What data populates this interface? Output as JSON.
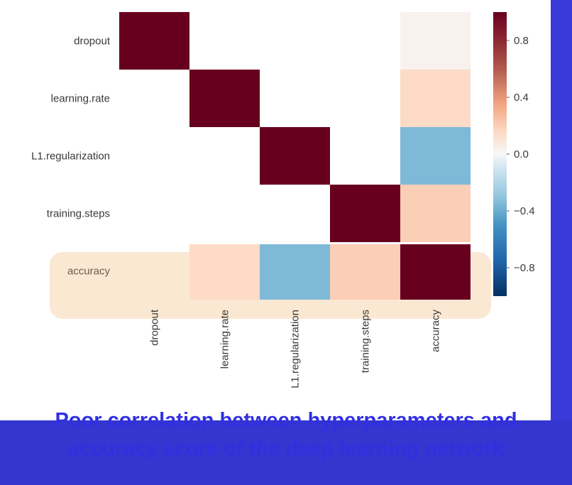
{
  "chart_data": {
    "type": "heatmap",
    "variables": [
      "dropout",
      "learning.rate",
      "L1.regularization",
      "training.steps",
      "accuracy"
    ],
    "matrix": [
      [
        1.0,
        0.0,
        0.0,
        0.0,
        0.03
      ],
      [
        0.0,
        1.0,
        0.0,
        0.0,
        0.15
      ],
      [
        0.0,
        0.0,
        1.0,
        0.0,
        -0.35
      ],
      [
        0.0,
        0.0,
        0.0,
        1.0,
        0.2
      ],
      [
        0.03,
        0.15,
        -0.35,
        0.2,
        1.0
      ]
    ],
    "colorbar": {
      "min": -1.0,
      "max": 1.0,
      "ticks": [
        0.8,
        0.4,
        0.0,
        -0.4,
        -0.8
      ],
      "tick_labels": [
        "0.8",
        "0.4",
        "0.0",
        "−0.4",
        "−0.8"
      ]
    },
    "highlight_row": "accuracy",
    "highlight_color": "#fbe8d3",
    "colormap": "RdBu_r"
  },
  "caption": {
    "line1": "Poor correlation between hyperparameters and",
    "line2": "accuracy score of the deep learning network"
  }
}
